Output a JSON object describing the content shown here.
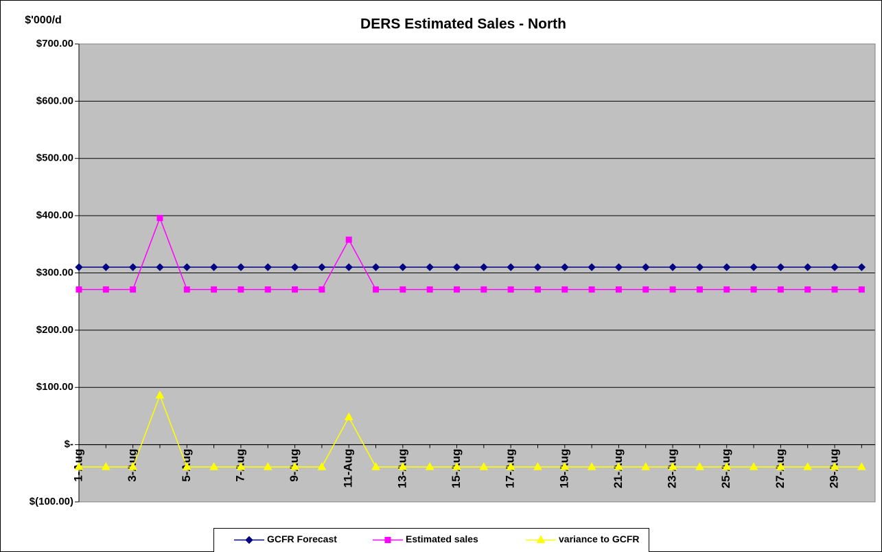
{
  "chart_data": {
    "type": "line",
    "title": "DERS Estimated Sales - North",
    "y_label": "$'000/d",
    "categories": [
      "1-Aug",
      null,
      "3-Aug",
      null,
      "5-Aug",
      null,
      "7-Aug",
      null,
      "9-Aug",
      null,
      "11-Aug",
      null,
      "13-Aug",
      null,
      "15-Aug",
      null,
      "17-Aug",
      null,
      "19-Aug",
      null,
      "21-Aug",
      null,
      "23-Aug",
      null,
      "25-Aug",
      null,
      "27-Aug",
      null,
      "29-Aug",
      null
    ],
    "series": [
      {
        "name": "GCFR Forecast",
        "color": "#000080",
        "marker": "diamond",
        "values": [
          310,
          310,
          310,
          310,
          310,
          310,
          310,
          310,
          310,
          310,
          310,
          310,
          310,
          310,
          310,
          310,
          310,
          310,
          310,
          310,
          310,
          310,
          310,
          310,
          310,
          310,
          310,
          310,
          310,
          310
        ]
      },
      {
        "name": "Estimated sales",
        "color": "#FF00FF",
        "marker": "square",
        "values": [
          271,
          271,
          271,
          396,
          271,
          271,
          271,
          271,
          271,
          271,
          358,
          271,
          271,
          271,
          271,
          271,
          271,
          271,
          271,
          271,
          271,
          271,
          271,
          271,
          271,
          271,
          271,
          271,
          271,
          271
        ]
      },
      {
        "name": "variance to GCFR",
        "color": "#FFFF00",
        "marker": "triangle",
        "values": [
          -39,
          -39,
          -39,
          86,
          -39,
          -39,
          -39,
          -39,
          -39,
          -39,
          48,
          -39,
          -39,
          -39,
          -39,
          -39,
          -39,
          -39,
          -39,
          -39,
          -39,
          -39,
          -39,
          -39,
          -39,
          -39,
          -39,
          -39,
          -39,
          -39
        ]
      }
    ],
    "ylim": [
      -100,
      700
    ],
    "yticks": [
      {
        "value": -100,
        "label": "$(100.00)"
      },
      {
        "value": 0,
        "label": "$-"
      },
      {
        "value": 100,
        "label": "$100.00"
      },
      {
        "value": 200,
        "label": "$200.00"
      },
      {
        "value": 300,
        "label": "$300.00"
      },
      {
        "value": 400,
        "label": "$400.00"
      },
      {
        "value": 500,
        "label": "$500.00"
      },
      {
        "value": 600,
        "label": "$600.00"
      },
      {
        "value": 700,
        "label": "$700.00"
      }
    ],
    "grid": true,
    "legend": "bottom",
    "plot_background": "#C0C0C0"
  }
}
